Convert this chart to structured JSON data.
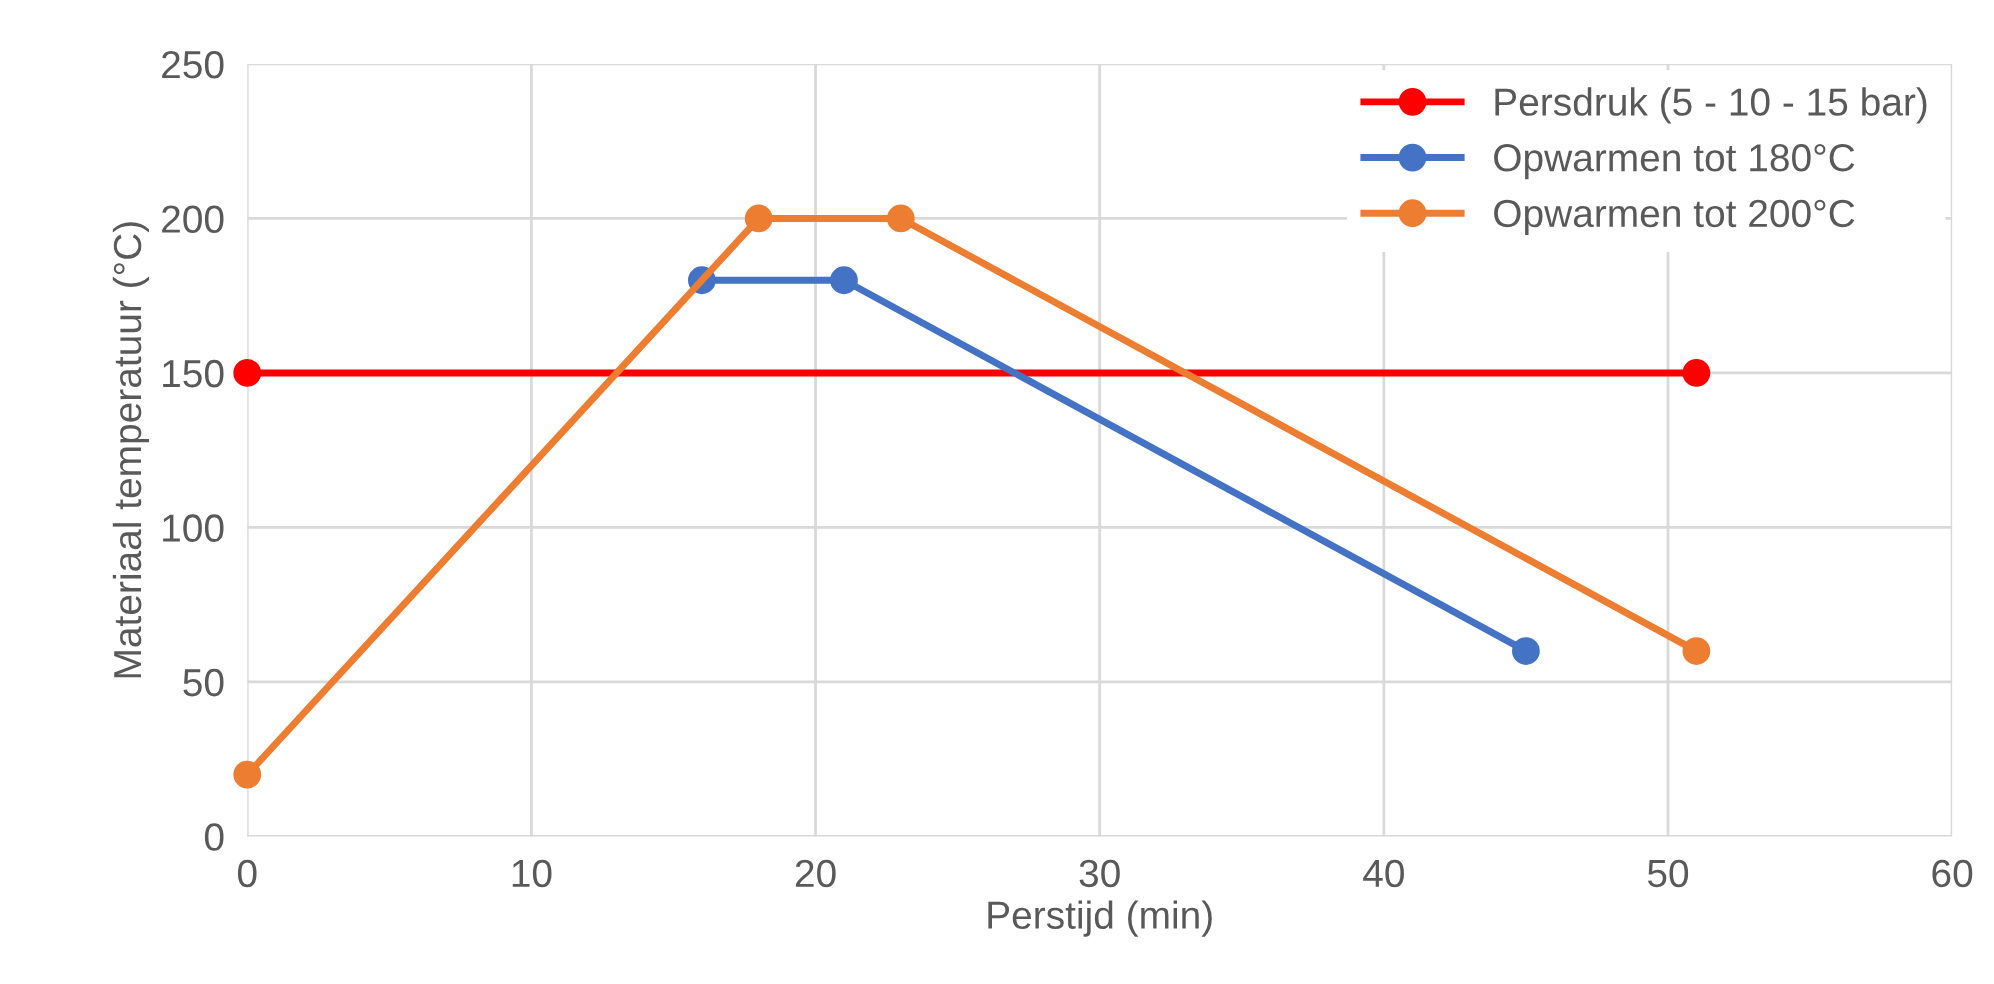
{
  "chart_data": {
    "type": "line",
    "xlabel": "Perstijd (min)",
    "ylabel": "Materiaal temperatuur (°C)",
    "xlim": [
      0,
      60
    ],
    "xticks": [
      0,
      10,
      20,
      30,
      40,
      50,
      60
    ],
    "ylim": [
      0,
      250
    ],
    "yticks": [
      0,
      50,
      100,
      150,
      200,
      250
    ],
    "grid": true,
    "legend": "top right",
    "marker": "circle",
    "line_style": "solid",
    "series": [
      {
        "name": "Persdruk (5 - 10 - 15 bar)",
        "color": "#ff0000",
        "x": [
          0,
          51
        ],
        "values": [
          150,
          150
        ]
      },
      {
        "name": "Opwarmen tot 180°C",
        "color": "#4472c4",
        "x": [
          16,
          21,
          45
        ],
        "values": [
          180,
          180,
          60
        ]
      },
      {
        "name": "Opwarmen tot 200°C",
        "color": "#ed7d31",
        "x": [
          0,
          18,
          23,
          51
        ],
        "values": [
          20,
          200,
          200,
          60
        ]
      }
    ]
  }
}
